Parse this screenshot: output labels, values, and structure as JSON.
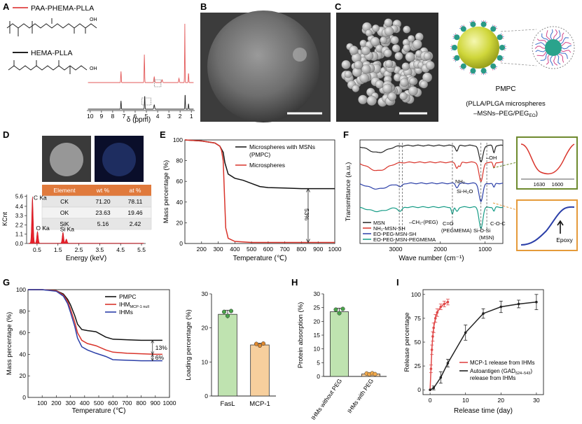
{
  "panels": {
    "A": {
      "letter": "A",
      "legend": [
        {
          "label": "PAA-PHEMA-PLLA",
          "color": "#e35a5a"
        },
        {
          "label": "HEMA-PLLA",
          "color": "#222222"
        }
      ],
      "xlabel": "δ (ppm)",
      "ticks": [
        "10",
        "9",
        "8",
        "7",
        "6",
        "5",
        "4",
        "3",
        "2",
        "1"
      ],
      "chem_text": [
        "OH",
        "OH"
      ]
    },
    "B": {
      "letter": "B"
    },
    "C": {
      "letter": "C",
      "label": "PMPC",
      "caption_line1": "(PLLA/PLGA microspheres",
      "caption_line2_pre": "–MSNs–PEG/PEG",
      "caption_line2_sub": "EO",
      "caption_line2_post": ")"
    },
    "D": {
      "letter": "D",
      "table": {
        "headers": [
          "Element",
          "wt %",
          "at %"
        ],
        "rows": [
          [
            "CK",
            "71.20",
            "78.11"
          ],
          [
            "OK",
            "23.63",
            "19.46"
          ],
          [
            "SiK",
            "5.16",
            "2.42"
          ]
        ]
      },
      "ylabel": "KCnt",
      "yticks": [
        "0.0",
        "1.1",
        "2.2",
        "3.3",
        "4.4",
        "5.6"
      ],
      "xticks": [
        "0.5",
        "1.5",
        "2.5",
        "3.5",
        "4.5",
        "5.5"
      ],
      "xlabel": "Energy (keV)",
      "peak_labels": [
        "C Ka",
        "O Ka",
        "Si Ka"
      ]
    },
    "E": {
      "letter": "E",
      "ylabel": "Mass percentage (%)",
      "xlabel": "Temperature (℃)",
      "yticks": [
        "0",
        "20",
        "40",
        "60",
        "80",
        "100"
      ],
      "xticks": [
        "200",
        "300",
        "400",
        "500",
        "600",
        "700",
        "800",
        "900",
        "1000"
      ],
      "legend_line1": "Microspheres with MSNs",
      "legend_line2": "(PMPC)",
      "legend_line3": "Microspheres",
      "annotation": "53%"
    },
    "F": {
      "letter": "F",
      "ylabel": "Transmittance (a.u.)",
      "xlabel": "Wave number (cm⁻¹)",
      "xticks": [
        "3000",
        "2000",
        "1000"
      ],
      "annotations": [
        "–OH",
        "NH₂",
        "Si-H₂O",
        "–CH₂-(PEG)",
        "C=O",
        "(PEGMEMA)",
        "Si-O-Si",
        "(MSN)",
        "C-O-C"
      ],
      "legend": [
        "MSN",
        "NH₂-MSN-SH",
        "EO-PEG-MSN-SH",
        "EO-PEG-MSN-PEGMEMA"
      ],
      "inset_ticks": [
        "1630",
        "1600"
      ],
      "epoxy_label": "Epoxy"
    },
    "G": {
      "letter": "G",
      "ylabel": "Mass percentage (%)",
      "xlabel": "Temperature (℃)",
      "yticks": [
        "0",
        "20",
        "40",
        "60",
        "80",
        "100"
      ],
      "xticks": [
        "100",
        "200",
        "300",
        "400",
        "500",
        "600",
        "700",
        "800",
        "900",
        "1000"
      ],
      "legend": [
        {
          "label": "PMPC",
          "sub": "",
          "color": "#111111"
        },
        {
          "label": "IHM",
          "sub": "MCP-1 null",
          "color": "#d9342b"
        },
        {
          "label": "IHMs",
          "sub": "",
          "color": "#2b3fa8"
        }
      ],
      "annotations": [
        "13%",
        "6%"
      ],
      "bar_ylabel": "Loading percentage (%)",
      "bar_yticks": [
        "0",
        "10",
        "20",
        "30"
      ]
    },
    "H": {
      "letter": "H",
      "ylabel": "Protein absorption (%)",
      "yticks": [
        "0",
        "5",
        "10",
        "15",
        "20",
        "25",
        "30"
      ],
      "categories": [
        "IHMs without PEG",
        "IHMs with PEG"
      ]
    },
    "I": {
      "letter": "I",
      "ylabel": "Release percentage",
      "xlabel": "Release time (day)",
      "yticks": [
        "0",
        "25",
        "50",
        "75",
        "100"
      ],
      "xticks": [
        "0",
        "10",
        "20",
        "30"
      ],
      "legend": [
        {
          "line1": "MCP-1 release from IHMs",
          "line2": "",
          "color": "#e04848"
        },
        {
          "line1": "Autoantigen (GAD",
          "sub": "524–543",
          "post": ")",
          "line2": "release from IHMs",
          "color": "#222222"
        }
      ]
    }
  },
  "chart_data": [
    {
      "type": "line",
      "title": "",
      "xlabel": "Temperature (℃)",
      "ylabel": "Mass percentage (%)",
      "xlim": [
        100,
        1000
      ],
      "ylim": [
        0,
        100
      ],
      "series": [
        {
          "name": "Microspheres with MSNs (PMPC)",
          "color": "#111111",
          "x": [
            100,
            200,
            280,
            310,
            330,
            340,
            360,
            400,
            450,
            500,
            550,
            600,
            700,
            800,
            900,
            1000
          ],
          "y": [
            100,
            99,
            97,
            94,
            88,
            78,
            67,
            63,
            61,
            58,
            55,
            54,
            53.5,
            53,
            53,
            53
          ]
        },
        {
          "name": "Microspheres",
          "color": "#d9342b",
          "x": [
            100,
            200,
            280,
            310,
            320,
            330,
            338,
            345,
            360,
            400,
            500,
            600,
            700,
            800,
            900,
            1000
          ],
          "y": [
            100,
            99,
            97,
            94,
            90,
            80,
            45,
            15,
            5,
            2,
            1,
            1,
            1,
            1,
            1,
            1
          ]
        }
      ],
      "annotations": [
        "53%"
      ]
    },
    {
      "type": "line",
      "title": "",
      "xlabel": "Temperature (℃)",
      "ylabel": "Mass percentage (%)",
      "xlim": [
        0,
        1000
      ],
      "ylim": [
        0,
        100
      ],
      "series": [
        {
          "name": "PMPC",
          "color": "#111111",
          "x": [
            0,
            100,
            200,
            250,
            280,
            300,
            330,
            350,
            380,
            420,
            480,
            550,
            600,
            700,
            800,
            900,
            950
          ],
          "y": [
            100,
            100,
            99,
            96,
            91,
            86,
            76,
            68,
            63,
            62,
            61,
            56,
            54,
            53.5,
            53,
            53,
            53
          ]
        },
        {
          "name": "IHM MCP-1 null",
          "color": "#d9342b",
          "x": [
            0,
            100,
            200,
            250,
            280,
            300,
            330,
            350,
            380,
            420,
            480,
            550,
            600,
            700,
            800,
            900,
            950
          ],
          "y": [
            100,
            100,
            99,
            95,
            89,
            82,
            70,
            60,
            53,
            50,
            48,
            44,
            42,
            41,
            40.5,
            40,
            40
          ]
        },
        {
          "name": "IHMs",
          "color": "#2b3fa8",
          "x": [
            0,
            100,
            200,
            250,
            280,
            300,
            330,
            350,
            380,
            420,
            480,
            550,
            600,
            700,
            800,
            900,
            950
          ],
          "y": [
            100,
            100,
            98.5,
            94,
            87,
            79,
            66,
            55,
            47,
            44,
            41,
            38,
            35,
            34.5,
            34,
            34,
            34
          ]
        }
      ],
      "annotations": [
        "13%",
        "6%"
      ]
    },
    {
      "type": "bar",
      "title": "",
      "ylabel": "Loading percentage (%)",
      "ylim": [
        0,
        30
      ],
      "categories": [
        "FasL",
        "MCP-1"
      ],
      "values": [
        24,
        15
      ],
      "errors": [
        1.2,
        0.5
      ],
      "colors": [
        "#bfe3b0",
        "#f7cf9d"
      ]
    },
    {
      "type": "bar",
      "title": "",
      "ylabel": "Protein absorption (%)",
      "ylim": [
        0,
        30
      ],
      "categories": [
        "IHMs without PEG",
        "IHMs with PEG"
      ],
      "values": [
        23.5,
        0.9
      ],
      "errors": [
        1.3,
        0.3
      ],
      "colors": [
        "#bfe3b0",
        "#f7cf9d"
      ]
    },
    {
      "type": "line",
      "title": "",
      "xlabel": "Release time (day)",
      "ylabel": "Release percentage",
      "xlim": [
        0,
        30
      ],
      "ylim": [
        0,
        100
      ],
      "series": [
        {
          "name": "MCP-1 release from IHMs",
          "color": "#e04848",
          "x": [
            0,
            0.25,
            0.5,
            0.75,
            1,
            1.5,
            2,
            3,
            4,
            5
          ],
          "y": [
            0,
            22,
            42,
            56,
            65,
            75,
            81,
            87,
            90,
            92
          ],
          "err": [
            0,
            4,
            5,
            5,
            5,
            4,
            4,
            3,
            3,
            3
          ]
        },
        {
          "name": "Autoantigen (GAD524–543) release from IHMs",
          "color": "#222222",
          "x": [
            0,
            1,
            3,
            5,
            10,
            15,
            20,
            25,
            30
          ],
          "y": [
            0,
            2,
            13,
            28,
            60,
            80,
            87,
            90,
            92
          ],
          "err": [
            0,
            2,
            6,
            4,
            8,
            5,
            6,
            4,
            8
          ]
        }
      ]
    }
  ]
}
